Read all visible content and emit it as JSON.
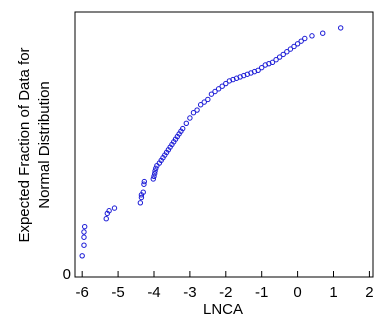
{
  "chart_data": {
    "type": "scatter",
    "title": "",
    "xlabel": "LNCA",
    "ylabel_line1": "Expected Fraction of Data for",
    "ylabel_line2": "Normal Distribution",
    "xlim": [
      -6.2,
      2.1
    ],
    "ylim": [
      0,
      1
    ],
    "x_ticks": [
      -6,
      -5,
      -4,
      -3,
      -2,
      -1,
      0,
      1,
      2
    ],
    "y_ticks": [
      0
    ],
    "grid": false,
    "legend": "none",
    "marker": "open-circle",
    "marker_color": "#1a1ad6",
    "x": [
      -6.0,
      -5.95,
      -5.95,
      -5.95,
      -5.93,
      -5.33,
      -5.3,
      -5.25,
      -5.1,
      -4.38,
      -4.35,
      -4.35,
      -4.3,
      -4.28,
      -4.27,
      -4.02,
      -4.0,
      -3.98,
      -3.97,
      -3.95,
      -3.92,
      -3.85,
      -3.8,
      -3.75,
      -3.7,
      -3.65,
      -3.6,
      -3.55,
      -3.5,
      -3.45,
      -3.4,
      -3.35,
      -3.3,
      -3.25,
      -3.2,
      -3.1,
      -3.0,
      -2.9,
      -2.8,
      -2.7,
      -2.6,
      -2.5,
      -2.4,
      -2.3,
      -2.2,
      -2.1,
      -2.0,
      -1.9,
      -1.8,
      -1.7,
      -1.6,
      -1.5,
      -1.4,
      -1.3,
      -1.2,
      -1.1,
      -1.0,
      -0.9,
      -0.8,
      -0.7,
      -0.6,
      -0.5,
      -0.4,
      -0.3,
      -0.2,
      -0.1,
      0.0,
      0.1,
      0.2,
      0.4,
      0.7,
      1.2
    ],
    "y": [
      0.08,
      0.12,
      0.15,
      0.17,
      0.19,
      0.22,
      0.24,
      0.25,
      0.26,
      0.28,
      0.3,
      0.31,
      0.32,
      0.35,
      0.36,
      0.37,
      0.38,
      0.39,
      0.4,
      0.41,
      0.42,
      0.43,
      0.44,
      0.45,
      0.46,
      0.47,
      0.48,
      0.49,
      0.5,
      0.51,
      0.52,
      0.53,
      0.54,
      0.55,
      0.56,
      0.58,
      0.6,
      0.62,
      0.63,
      0.65,
      0.66,
      0.67,
      0.69,
      0.7,
      0.71,
      0.72,
      0.73,
      0.74,
      0.745,
      0.75,
      0.755,
      0.76,
      0.765,
      0.77,
      0.775,
      0.78,
      0.79,
      0.8,
      0.805,
      0.81,
      0.82,
      0.83,
      0.84,
      0.85,
      0.86,
      0.87,
      0.88,
      0.89,
      0.9,
      0.91,
      0.92,
      0.94
    ]
  }
}
